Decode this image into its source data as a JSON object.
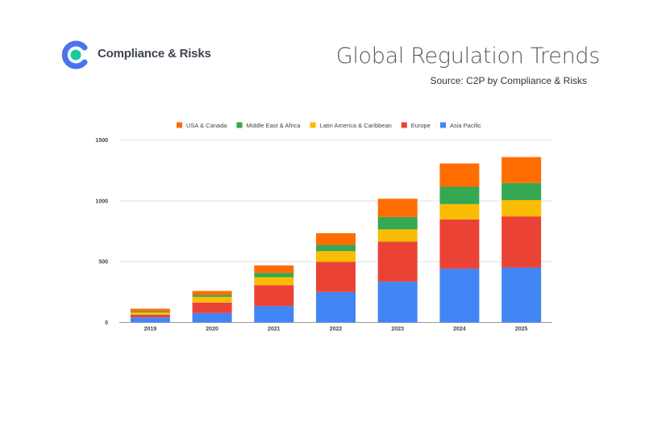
{
  "header": {
    "brand": "Compliance & Risks",
    "title": "Global Regulation Trends",
    "source": "Source: C2P by Compliance & Risks"
  },
  "colors": {
    "logo_ring": "#4a74ec",
    "logo_dot": "#1cc7a3"
  },
  "chart_data": {
    "type": "bar",
    "stacked": true,
    "categories": [
      "2019",
      "2020",
      "2021",
      "2022",
      "2023",
      "2024",
      "2025"
    ],
    "ylim": [
      0,
      1500
    ],
    "yticks": [
      0,
      500,
      1000,
      1500
    ],
    "grid": true,
    "legend_position": "top",
    "series": [
      {
        "name": "Asia Pacific",
        "color": "#4285f4",
        "values": [
          42,
          77,
          135,
          250,
          336,
          442,
          451
        ]
      },
      {
        "name": "Europe",
        "color": "#ea4335",
        "values": [
          22,
          87,
          172,
          248,
          328,
          405,
          421
        ]
      },
      {
        "name": "Latin America & Caribbean",
        "color": "#fbbc04",
        "values": [
          18,
          46,
          65,
          88,
          101,
          126,
          134
        ]
      },
      {
        "name": "Middle East & Africa",
        "color": "#34a853",
        "values": [
          9,
          16,
          35,
          51,
          102,
          142,
          140
        ]
      },
      {
        "name": "USA & Canada",
        "color": "#ff6d01",
        "values": [
          22,
          33,
          62,
          97,
          150,
          192,
          214
        ]
      }
    ],
    "legend_order": [
      "USA & Canada",
      "Middle East & Africa",
      "Latin America & Caribbean",
      "Europe",
      "Asia Pacific"
    ]
  }
}
